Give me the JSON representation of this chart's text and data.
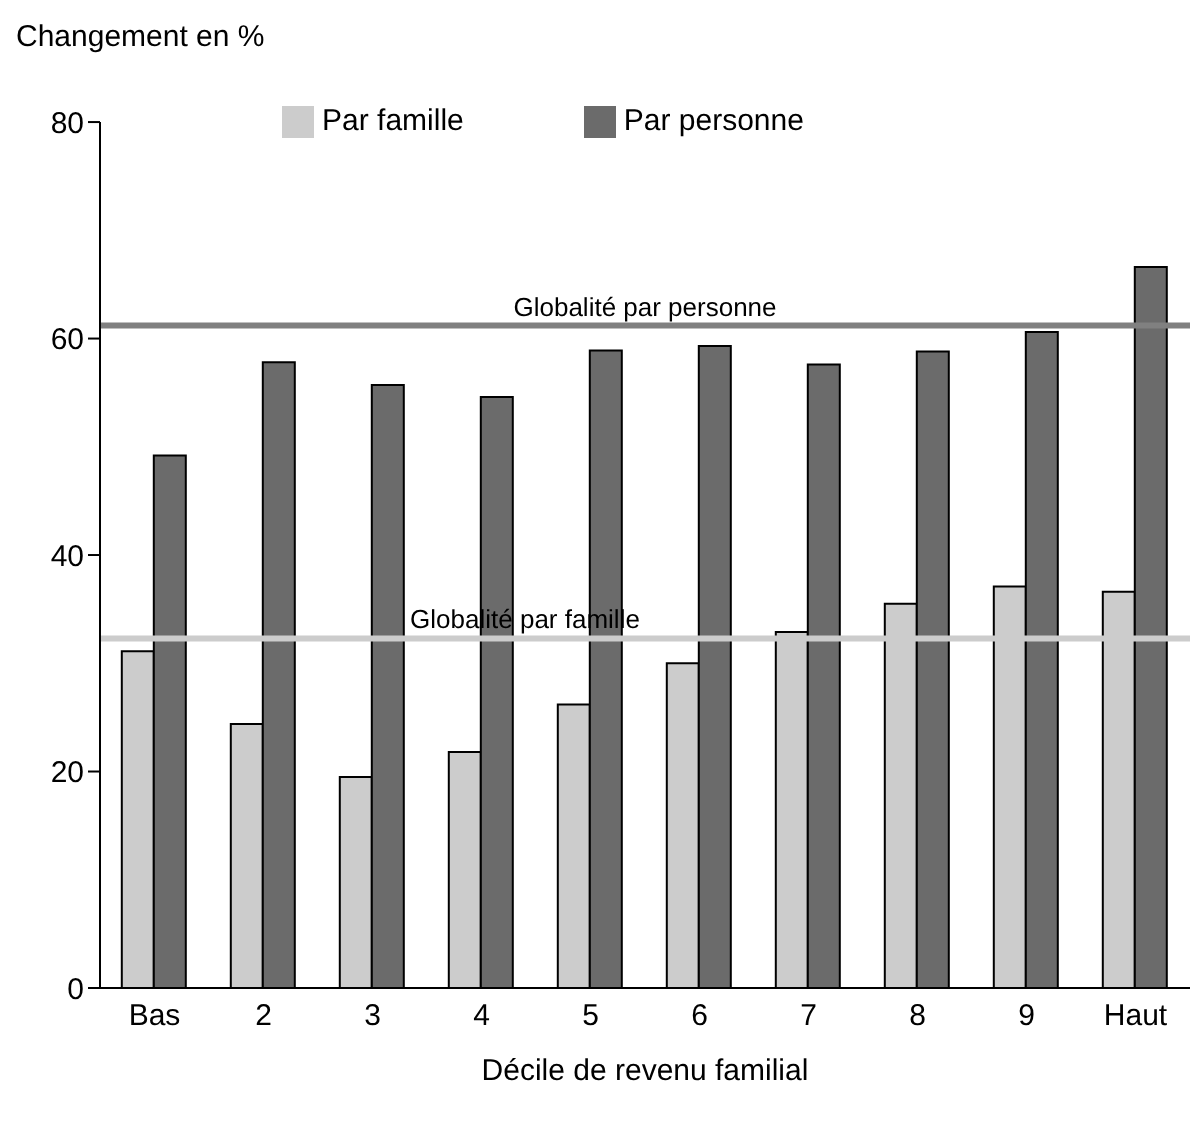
{
  "chart_data": {
    "type": "bar",
    "ylabel": "Changement en %",
    "xlabel": "Décile de revenu familial",
    "categories": [
      "Bas",
      "2",
      "3",
      "4",
      "5",
      "6",
      "7",
      "8",
      "9",
      "Haut"
    ],
    "series": [
      {
        "name": "Par famille",
        "color": "#cccccc",
        "values": [
          31.1,
          24.4,
          19.5,
          21.8,
          26.2,
          30.0,
          32.9,
          35.5,
          37.1,
          36.6
        ]
      },
      {
        "name": "Par personne",
        "color": "#6b6b6b",
        "values": [
          49.2,
          57.8,
          55.7,
          54.6,
          58.9,
          59.3,
          57.6,
          58.8,
          60.6,
          66.6
        ]
      }
    ],
    "ylim": [
      0,
      80
    ],
    "yticks": [
      0,
      20,
      40,
      60,
      80
    ],
    "grid": false,
    "legend": "top",
    "ref_lines": [
      {
        "axis": "y",
        "value": 61.2,
        "label": "Globalité par personne",
        "color": "#808080"
      },
      {
        "axis": "y",
        "value": 32.3,
        "label": "Globalité par famille",
        "color": "#cccccc"
      }
    ]
  }
}
